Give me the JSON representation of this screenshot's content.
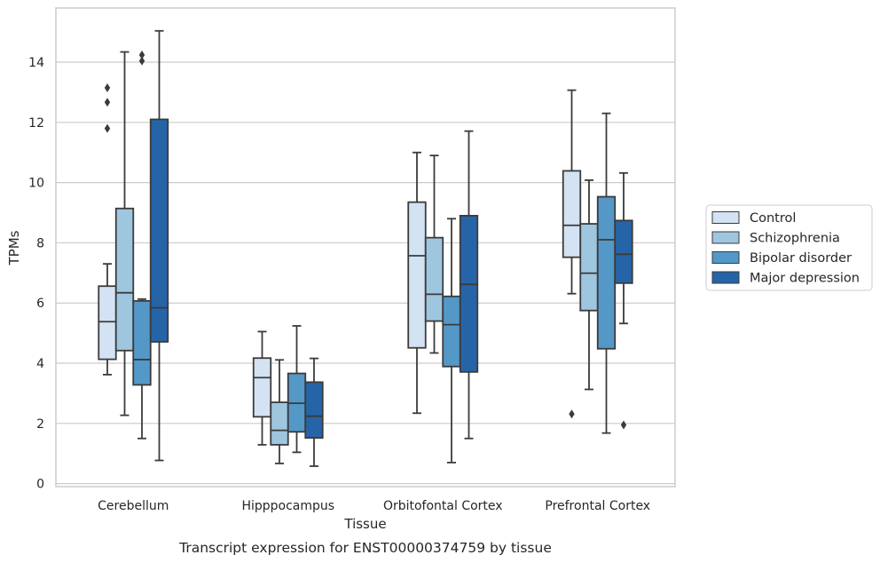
{
  "chart_data": {
    "type": "boxplot",
    "caption": "Transcript expression for ENST00000374759 by tissue",
    "xlabel": "Tissue",
    "ylabel": "TPMs",
    "ylim": [
      -0.1,
      15.8
    ],
    "yticks": [
      0,
      2,
      4,
      6,
      8,
      10,
      12,
      14
    ],
    "grid": "horizontal",
    "legend_position": "right",
    "categories": [
      "Cerebellum",
      "Hipppocampus",
      "Orbitofontal Cortex",
      "Prefrontal Cortex"
    ],
    "series": [
      {
        "name": "Control",
        "color": "#d4e3f3",
        "boxes": [
          {
            "whisker_low": 3.62,
            "q1": 4.13,
            "median": 5.38,
            "q3": 6.56,
            "whisker_high": 7.3,
            "outliers": [
              11.8,
              12.67,
              13.15
            ]
          },
          {
            "whisker_low": 1.29,
            "q1": 2.22,
            "median": 3.52,
            "q3": 4.17,
            "whisker_high": 5.05,
            "outliers": []
          },
          {
            "whisker_low": 2.34,
            "q1": 4.51,
            "median": 7.57,
            "q3": 9.35,
            "whisker_high": 11.0,
            "outliers": []
          },
          {
            "whisker_low": 6.31,
            "q1": 7.52,
            "median": 8.58,
            "q3": 10.39,
            "whisker_high": 13.07,
            "outliers": [
              2.31
            ]
          }
        ]
      },
      {
        "name": "Schizophrenia",
        "color": "#9fc6df",
        "boxes": [
          {
            "whisker_low": 2.27,
            "q1": 4.42,
            "median": 6.34,
            "q3": 9.14,
            "whisker_high": 14.34,
            "outliers": []
          },
          {
            "whisker_low": 0.67,
            "q1": 1.29,
            "median": 1.77,
            "q3": 2.7,
            "whisker_high": 4.11,
            "outliers": []
          },
          {
            "whisker_low": 4.34,
            "q1": 5.4,
            "median": 6.29,
            "q3": 8.17,
            "whisker_high": 10.9,
            "outliers": []
          },
          {
            "whisker_low": 3.13,
            "q1": 5.75,
            "median": 6.99,
            "q3": 8.63,
            "whisker_high": 10.08,
            "outliers": []
          }
        ]
      },
      {
        "name": "Bipolar disorder",
        "color": "#5498c7",
        "boxes": [
          {
            "whisker_low": 1.5,
            "q1": 3.28,
            "median": 4.12,
            "q3": 6.07,
            "whisker_high": 6.13,
            "outliers": [
              14.04,
              14.24
            ]
          },
          {
            "whisker_low": 1.04,
            "q1": 1.72,
            "median": 2.67,
            "q3": 3.66,
            "whisker_high": 5.24,
            "outliers": []
          },
          {
            "whisker_low": 0.7,
            "q1": 3.89,
            "median": 5.28,
            "q3": 6.22,
            "whisker_high": 8.8,
            "outliers": []
          },
          {
            "whisker_low": 1.68,
            "q1": 4.48,
            "median": 8.1,
            "q3": 9.53,
            "whisker_high": 12.3,
            "outliers": []
          }
        ]
      },
      {
        "name": "Major depression",
        "color": "#2664a8",
        "boxes": [
          {
            "whisker_low": 0.77,
            "q1": 4.71,
            "median": 5.84,
            "q3": 12.1,
            "whisker_high": 15.04,
            "outliers": []
          },
          {
            "whisker_low": 0.58,
            "q1": 1.52,
            "median": 2.24,
            "q3": 3.37,
            "whisker_high": 4.16,
            "outliers": []
          },
          {
            "whisker_low": 1.5,
            "q1": 3.71,
            "median": 6.62,
            "q3": 8.9,
            "whisker_high": 11.71,
            "outliers": []
          },
          {
            "whisker_low": 5.32,
            "q1": 6.66,
            "median": 7.62,
            "q3": 8.74,
            "whisker_high": 10.32,
            "outliers": [
              1.95
            ]
          }
        ]
      }
    ]
  }
}
